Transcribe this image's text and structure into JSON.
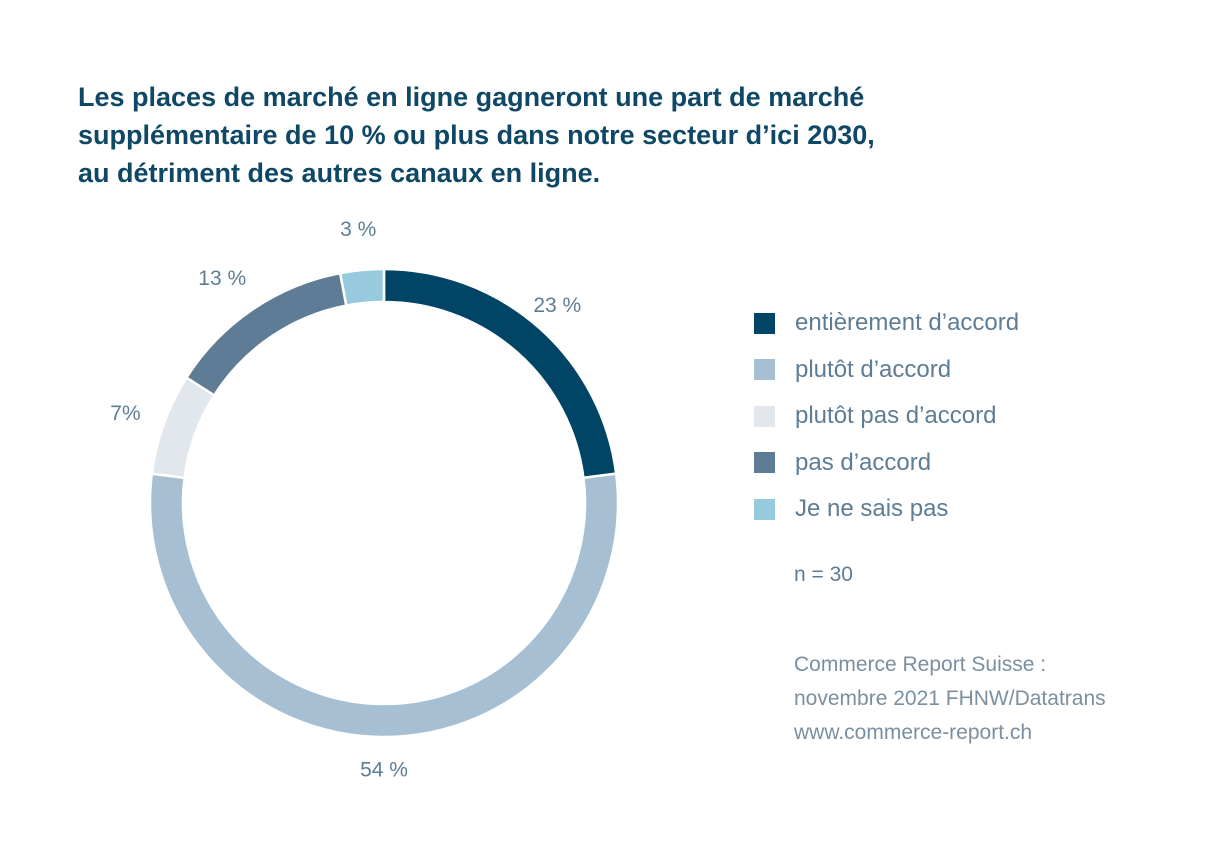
{
  "chart_data": {
    "type": "pie",
    "variant": "donut",
    "title_lines": [
      "Les places de marché en ligne gagneront une part de marché",
      "supplémentaire de 10 % ou plus dans notre secteur d’ici 2030,",
      "au détriment des autres canaux en ligne."
    ],
    "slices": [
      {
        "category": "entièrement d’accord",
        "value": 23,
        "label": "23 %",
        "color": "#004466"
      },
      {
        "category": "plutôt d’accord",
        "value": 54,
        "label": "54 %",
        "color": "#a6bfd3"
      },
      {
        "category": "plutôt pas d’accord",
        "value": 7,
        "label": "7%",
        "color": "#e2e7ee"
      },
      {
        "category": "pas d’accord",
        "value": 13,
        "label": "13 %",
        "color": "#5f7c96"
      },
      {
        "category": "Je ne sais pas",
        "value": 3,
        "label": "3 %",
        "color": "#96cadc"
      }
    ],
    "legend_position": "right",
    "sample_note": "n = 30",
    "source_lines": [
      "Commerce Report Suisse :",
      "novembre 2021 FHNW/Datatrans",
      "www.commerce-report.ch"
    ]
  }
}
